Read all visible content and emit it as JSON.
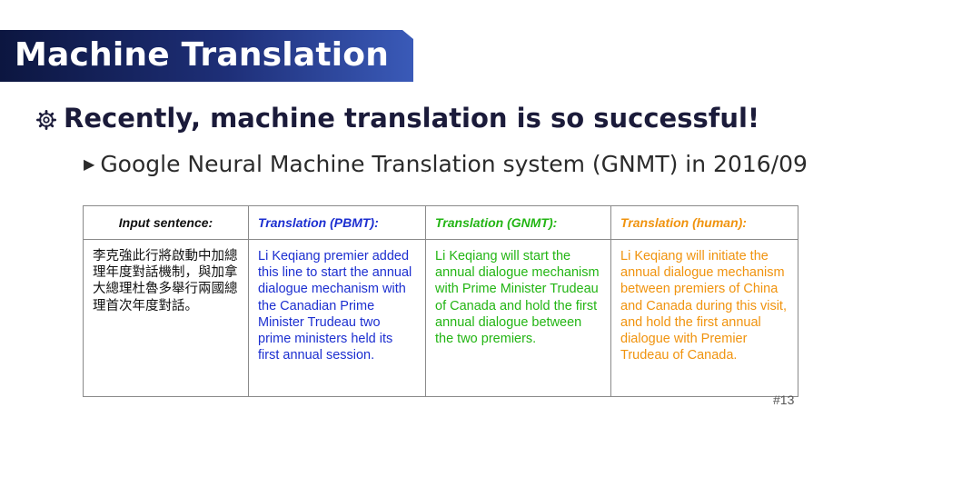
{
  "slide": {
    "title": "Machine Translation",
    "bullet_main": "Recently, machine translation is so successful!",
    "bullet_sub": "Google Neural Machine Translation system (GNMT) in 2016/09",
    "page_number": "#13"
  },
  "table": {
    "headers": {
      "input": "Input sentence:",
      "pbmt": "Translation (PBMT):",
      "gnmt": "Translation (GNMT):",
      "human": "Translation (human):"
    },
    "cells": {
      "input": "李克強此行將啟動中加總理年度對話機制，與加拿大總理杜魯多舉行兩國總理首次年度對話。",
      "pbmt": "Li Keqiang premier added this line to start the annual dialogue mechanism with the Canadian Prime Minister Trudeau two prime ministers held its first annual session.",
      "gnmt": "Li Keqiang will start the annual dialogue mechanism with Prime Minister Trudeau of Canada and hold the first annual dialogue between the two premiers.",
      "human": "Li Keqiang will initiate the annual dialogue mechanism between premiers of China and Canada during this visit, and hold the first annual dialogue with Premier Trudeau of Canada."
    }
  },
  "colors": {
    "banner": "#1e2f78",
    "pbmt": "#1c2fd0",
    "gnmt": "#23b514",
    "human": "#f0930e"
  },
  "icons": {
    "main_bullet": "gear-bullet-icon",
    "sub_bullet": "triangle-bullet-icon"
  }
}
